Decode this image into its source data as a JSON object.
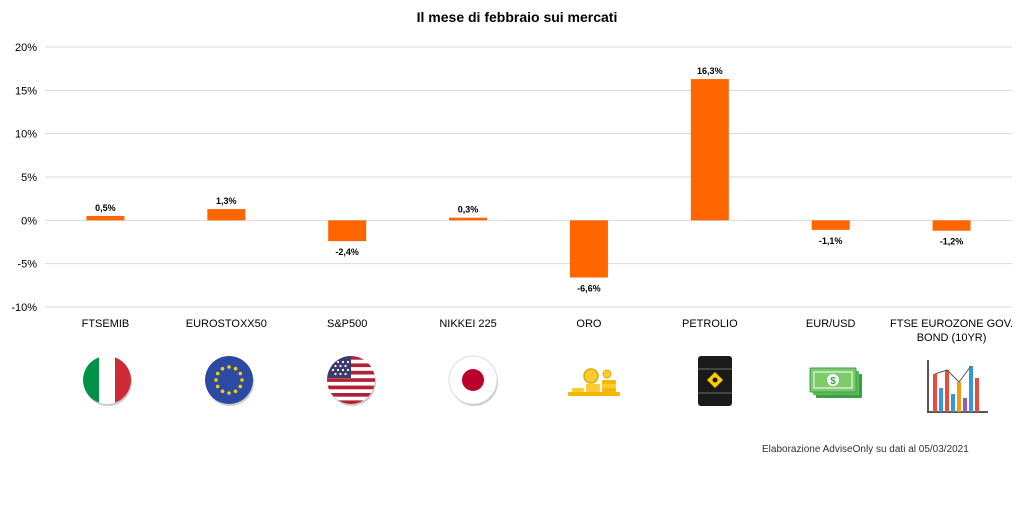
{
  "chart_data": {
    "type": "bar",
    "title": "Il mese di febbraio sui mercati",
    "xlabel": "",
    "ylabel": "",
    "categories": [
      "FTSEMIB",
      "EUROSTOXX50",
      "S&P500",
      "NIKKEI 225",
      "ORO",
      "PETROLIO",
      "EUR/USD",
      "FTSE EUROZONE GOV. BOND (10YR)"
    ],
    "category_lines": [
      [
        "FTSEMIB"
      ],
      [
        "EUROSTOXX50"
      ],
      [
        "S&P500"
      ],
      [
        "NIKKEI 225"
      ],
      [
        "ORO"
      ],
      [
        "PETROLIO"
      ],
      [
        "EUR/USD"
      ],
      [
        "FTSE EUROZONE GOV.",
        "BOND (10YR)"
      ]
    ],
    "values": [
      0.5,
      1.3,
      -2.4,
      0.3,
      -6.6,
      16.3,
      -1.1,
      -1.2
    ],
    "data_labels": [
      "0,5%",
      "1,3%",
      "-2,4%",
      "0,3%",
      "-6,6%",
      "16,3%",
      "-1,1%",
      "-1,2%"
    ],
    "ylim": [
      -10,
      20
    ],
    "yticks": [
      20,
      15,
      10,
      5,
      0,
      -5,
      -10
    ],
    "ytick_labels": [
      "20%",
      "15%",
      "10%",
      "5%",
      "0%",
      "-5%",
      "-10%"
    ],
    "grid": true,
    "bar_color": "#FF6600",
    "grid_color": "#d9d9d9",
    "icons": [
      "italy-flag-icon",
      "eu-flag-icon",
      "usa-flag-icon",
      "japan-flag-icon",
      "gold-coins-icon",
      "oil-barrel-icon",
      "banknotes-icon",
      "bar-chart-icon"
    ]
  },
  "source_note": "Elaborazione AdviseOnly su dati al 05/03/2021"
}
